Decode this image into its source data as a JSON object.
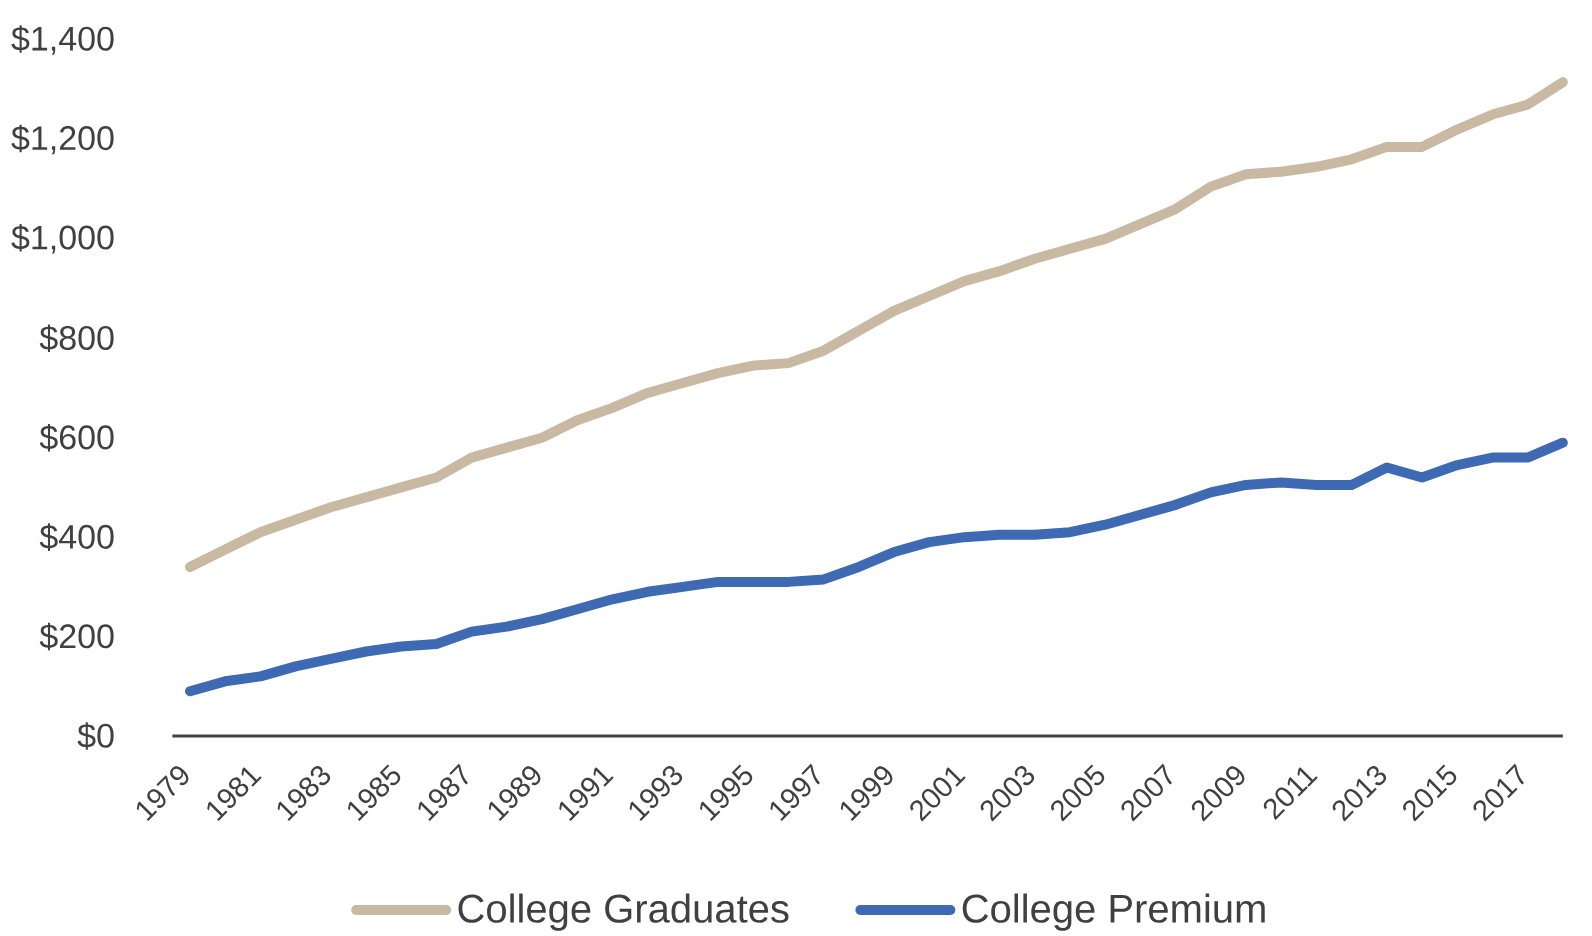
{
  "chart_data": {
    "type": "line",
    "categories": [
      "1979",
      null,
      "1981",
      null,
      "1983",
      null,
      "1985",
      null,
      "1987",
      null,
      "1989",
      null,
      "1991",
      null,
      "1993",
      null,
      "1995",
      null,
      "1997",
      null,
      "1999",
      null,
      "2001",
      null,
      "2003",
      null,
      "2005",
      null,
      "2007",
      null,
      "2009",
      null,
      "2011",
      null,
      "2013",
      null,
      "2015",
      null,
      "2017",
      null
    ],
    "ylim": [
      0,
      1400
    ],
    "yticks": [
      {
        "value": 0,
        "label": "$0"
      },
      {
        "value": 200,
        "label": "$200"
      },
      {
        "value": 400,
        "label": "$400"
      },
      {
        "value": 600,
        "label": "$600"
      },
      {
        "value": 800,
        "label": "$800"
      },
      {
        "value": 1000,
        "label": "$1,000"
      },
      {
        "value": 1200,
        "label": "$1,200"
      },
      {
        "value": 1400,
        "label": "$1,400"
      }
    ],
    "legend": "bottom",
    "series": [
      {
        "name": "College Graduates",
        "color": "#c9b9a3",
        "values": [
          340,
          375,
          410,
          435,
          460,
          480,
          500,
          520,
          560,
          580,
          600,
          635,
          660,
          690,
          710,
          730,
          745,
          750,
          775,
          815,
          855,
          885,
          915,
          935,
          960,
          980,
          1000,
          1030,
          1060,
          1105,
          1130,
          1135,
          1145,
          1160,
          1185,
          1185,
          1220,
          1250,
          1270,
          1315
        ]
      },
      {
        "name": "College Premium",
        "color": "#3e6ab4",
        "values": [
          90,
          110,
          120,
          140,
          155,
          170,
          180,
          185,
          210,
          220,
          235,
          255,
          275,
          290,
          300,
          310,
          310,
          310,
          315,
          340,
          370,
          390,
          400,
          405,
          405,
          410,
          425,
          445,
          465,
          490,
          505,
          510,
          505,
          505,
          540,
          520,
          545,
          560,
          560,
          590
        ]
      }
    ]
  }
}
